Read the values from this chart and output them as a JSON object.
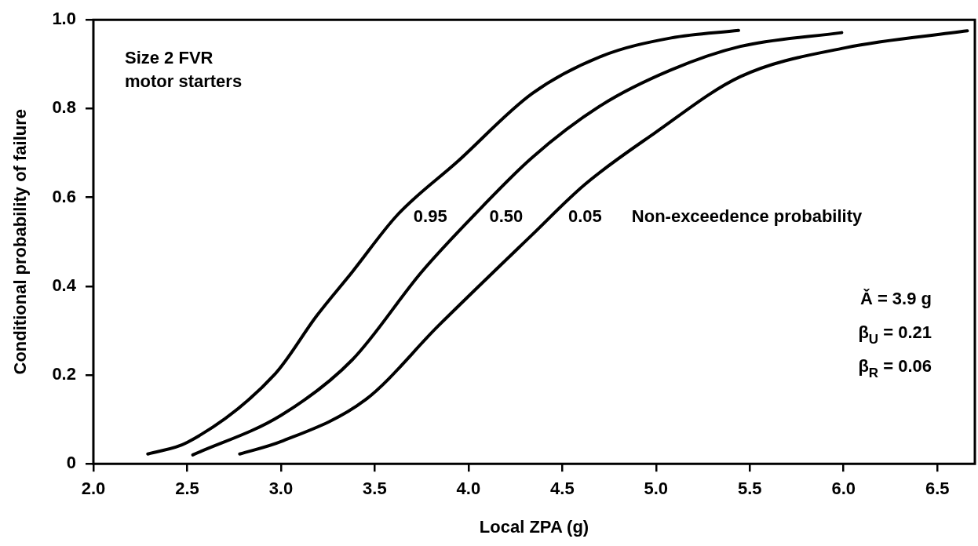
{
  "chart_data": {
    "type": "line",
    "xlabel": "Local ZPA (g)",
    "ylabel": "Conditional probability of failure",
    "xlim": [
      2.0,
      6.7
    ],
    "xticks": [
      {
        "value": 2.0,
        "label": "2.0"
      },
      {
        "value": 2.5,
        "label": "2.5"
      },
      {
        "value": 3.0,
        "label": "3.0"
      },
      {
        "value": 3.5,
        "label": "3.5"
      },
      {
        "value": 4.0,
        "label": "4.0"
      },
      {
        "value": 4.5,
        "label": "4.5"
      },
      {
        "value": 5.0,
        "label": "5.0"
      },
      {
        "value": 5.5,
        "label": "5.5"
      },
      {
        "value": 6.0,
        "label": "6.0"
      },
      {
        "value": 6.5,
        "label": "6.5"
      }
    ],
    "ylim": [
      0,
      1.0
    ],
    "yticks": [
      0,
      {
        "value": 0.2,
        "label": "0.2"
      },
      {
        "value": 0.4,
        "label": "0.4"
      },
      {
        "value": 0.6,
        "label": "0.6"
      },
      {
        "value": 0.8,
        "label": "0.8"
      },
      {
        "value": 1.0,
        "label": "1.0"
      }
    ],
    "grid": false,
    "legend": false,
    "marker": "none",
    "line_style": "solid",
    "series": [
      {
        "name": "0.95",
        "color": "#000000",
        "x": [
          2.29,
          2.5,
          2.97,
          3.19,
          3.38,
          3.62,
          3.94,
          4.34,
          4.71,
          5.08,
          5.44
        ],
        "values": [
          0.022,
          0.048,
          0.203,
          0.333,
          0.432,
          0.56,
          0.68,
          0.834,
          0.918,
          0.959,
          0.976
        ]
      },
      {
        "name": "0.50",
        "color": "#000000",
        "x": [
          2.53,
          3.0,
          3.38,
          3.75,
          4.03,
          4.34,
          4.71,
          5.08,
          5.45,
          5.99
        ],
        "values": [
          0.02,
          0.109,
          0.234,
          0.432,
          0.56,
          0.69,
          0.808,
          0.887,
          0.94,
          0.971
        ]
      },
      {
        "name": "0.05",
        "color": "#000000",
        "x": [
          2.78,
          3.0,
          3.45,
          3.84,
          4.34,
          4.62,
          4.99,
          5.45,
          6.01,
          6.66
        ],
        "values": [
          0.022,
          0.05,
          0.144,
          0.311,
          0.516,
          0.629,
          0.744,
          0.872,
          0.937,
          0.975
        ]
      }
    ],
    "annotations": [
      "Size 2 FVR\nmotor starters",
      "Non-exceedence probability",
      "Ǎ = 3.9 g",
      "β$_{U}$ = 0.21",
      "β$_{R}$ = 0.06"
    ]
  }
}
